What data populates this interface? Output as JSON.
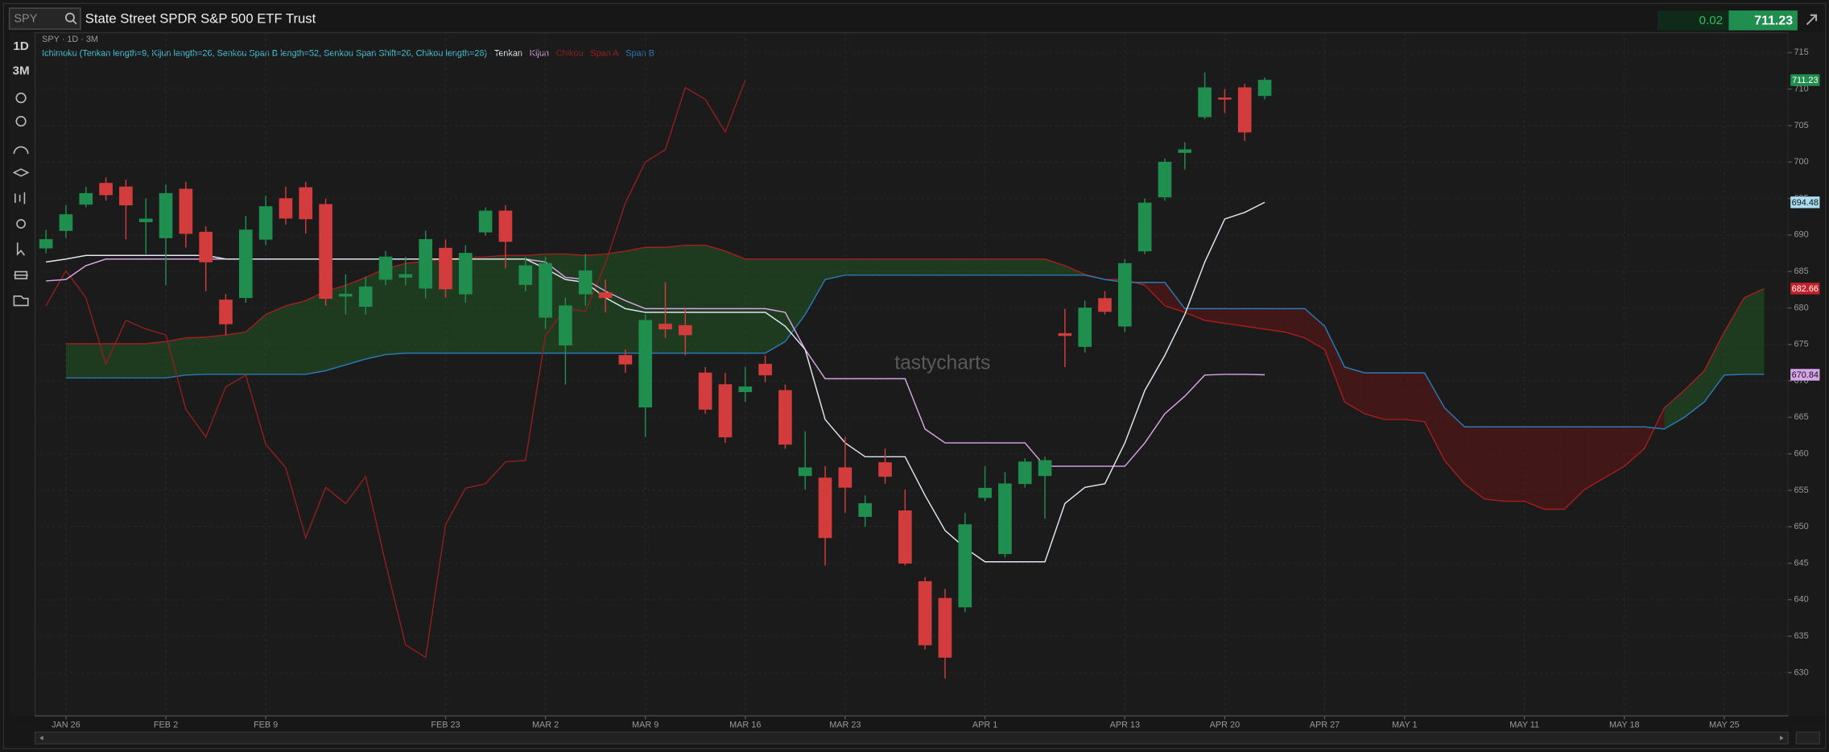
{
  "toolbar": {
    "symbol": "SPY",
    "name": "State Street SPDR S&P 500 ETF Trust",
    "change": "0.02",
    "last": "711.23",
    "timeframes": [
      "1D",
      "3M"
    ]
  },
  "chart_data": {
    "type": "candlestick",
    "title": "SPY · 1D · 3M",
    "study": "Ichimoku (Tenkan length=9, Kijun length=26, Senkou Span B length=52, Senkou Span Shift=26, Chikou length=26)",
    "watermark": "tastycharts",
    "up_color": "#1f8e4e",
    "down_color": "#d23c3c",
    "cloud_up_color": "rgba(40,120,40,0.35)",
    "cloud_down_color": "rgba(120,20,20,0.42)",
    "open": [
      688.2,
      690.6,
      694.2,
      697.1,
      696.6,
      691.8,
      689.6,
      696.3,
      690.4,
      681.1,
      681.4,
      689.4,
      695.0,
      696.5,
      694.2,
      681.6,
      680.2,
      683.9,
      684.2,
      682.7,
      688.2,
      681.9,
      690.4,
      693.3,
      683.2,
      678.7,
      674.9,
      681.9,
      682.1,
      673.5,
      666.4,
      677.8,
      677.6,
      671.1,
      669.5,
      668.5,
      672.3,
      668.7,
      657.0,
      656.7,
      658.1,
      651.4,
      658.8,
      652.2,
      642.5,
      640.2,
      639.0,
      654.0,
      646.3,
      655.9,
      657.0,
      676.5,
      674.7,
      681.3,
      677.5,
      687.8,
      695.2,
      701.3,
      706.2,
      708.8,
      710.2,
      709.1
    ],
    "high": [
      690.7,
      694.1,
      696.6,
      697.9,
      697.6,
      695.0,
      696.9,
      697.3,
      691.2,
      681.9,
      692.6,
      695.4,
      696.6,
      697.3,
      695.0,
      684.6,
      684.3,
      687.8,
      687.0,
      690.6,
      689.4,
      688.6,
      693.8,
      694.1,
      687.0,
      687.0,
      681.4,
      687.4,
      683.9,
      674.3,
      679.1,
      683.5,
      679.9,
      671.9,
      671.1,
      671.9,
      673.5,
      669.5,
      663.1,
      658.3,
      662.3,
      654.3,
      660.7,
      655.1,
      643.1,
      641.5,
      651.9,
      658.3,
      657.5,
      659.4,
      659.6,
      679.9,
      681.0,
      682.3,
      686.7,
      695.0,
      700.5,
      702.7,
      712.3,
      710.0,
      710.7,
      711.6
    ],
    "low": [
      687.5,
      689.6,
      693.8,
      694.7,
      689.4,
      687.4,
      683.1,
      688.3,
      682.3,
      676.3,
      680.7,
      688.6,
      691.4,
      690.2,
      680.3,
      679.1,
      679.1,
      683.1,
      683.1,
      681.3,
      681.4,
      680.7,
      689.9,
      685.4,
      682.3,
      677.1,
      669.5,
      680.3,
      679.4,
      671.1,
      662.3,
      675.9,
      673.5,
      665.5,
      661.5,
      667.1,
      669.8,
      660.7,
      655.1,
      644.7,
      651.9,
      650.0,
      655.9,
      644.7,
      633.2,
      629.2,
      638.3,
      653.5,
      645.8,
      655.4,
      651.1,
      671.9,
      673.9,
      679.1,
      676.7,
      687.4,
      694.7,
      699.0,
      705.9,
      706.7,
      702.9,
      708.6
    ],
    "close": [
      689.4,
      692.8,
      695.7,
      695.5,
      694.1,
      692.2,
      695.7,
      690.2,
      686.3,
      677.8,
      690.7,
      693.9,
      692.3,
      692.2,
      681.3,
      681.9,
      682.9,
      687.0,
      684.6,
      689.4,
      682.6,
      687.5,
      693.3,
      689.1,
      685.8,
      686.1,
      680.3,
      685.1,
      681.4,
      672.3,
      678.3,
      677.1,
      676.3,
      666.1,
      662.3,
      669.2,
      670.8,
      661.3,
      658.1,
      648.5,
      655.4,
      653.2,
      656.9,
      645.0,
      633.8,
      632.1,
      650.3,
      655.3,
      655.9,
      658.9,
      659.1,
      676.2,
      680.0,
      679.5,
      686.1,
      694.4,
      700.0,
      701.7,
      710.2,
      708.6,
      704.1,
      711.23
    ],
    "series": [
      {
        "name": "Tenkan",
        "color": "#dfe8f0",
        "values": [
          686.3,
          686.7,
          687.2,
          687.2,
          687.2,
          687.2,
          687.2,
          687.2,
          687.2,
          686.7,
          686.7,
          686.7,
          686.7,
          686.7,
          686.7,
          686.7,
          686.7,
          686.7,
          686.7,
          686.7,
          686.7,
          686.7,
          686.7,
          686.7,
          686.7,
          685.4,
          683.9,
          683.5,
          681.4,
          679.9,
          679.4,
          679.4,
          679.4,
          679.4,
          679.4,
          679.4,
          679.4,
          677.5,
          674.3,
          664.7,
          661.5,
          659.6,
          659.6,
          659.6,
          654.3,
          649.5,
          647.1,
          645.2,
          645.2,
          645.2,
          645.2,
          653.2,
          655.4,
          655.9,
          661.5,
          668.7,
          673.5,
          679.1,
          686.3,
          692.2,
          693.1,
          694.48,
          null,
          null,
          null,
          null,
          null,
          null,
          null,
          null,
          null,
          null,
          null,
          null,
          null,
          null,
          null,
          null,
          null,
          null,
          null,
          null,
          null,
          null,
          null,
          null,
          null
        ]
      },
      {
        "name": "Kijun",
        "color": "#d8a6e6",
        "values": [
          683.7,
          683.9,
          685.8,
          686.7,
          686.7,
          686.7,
          686.7,
          686.7,
          686.7,
          686.7,
          686.7,
          686.7,
          686.7,
          686.7,
          686.7,
          686.7,
          686.7,
          686.7,
          686.7,
          686.7,
          686.7,
          686.7,
          686.7,
          686.7,
          686.7,
          686.3,
          684.2,
          683.9,
          682.3,
          681.0,
          679.9,
          679.9,
          679.9,
          679.9,
          679.9,
          679.9,
          679.9,
          679.4,
          674.3,
          670.3,
          670.3,
          670.3,
          670.3,
          670.3,
          663.4,
          661.5,
          661.5,
          661.5,
          661.5,
          661.5,
          658.3,
          658.3,
          658.3,
          658.3,
          658.3,
          661.5,
          665.5,
          667.9,
          670.8,
          670.9,
          670.9,
          670.84,
          null,
          null,
          null,
          null,
          null,
          null,
          null,
          null,
          null,
          null,
          null,
          null,
          null,
          null,
          null,
          null,
          null,
          null,
          null,
          null,
          null,
          null,
          null,
          null,
          null
        ]
      },
      {
        "name": "Chikou",
        "color": "#8e1f1f",
        "values": [
          680.3,
          685.1,
          681.4,
          672.3,
          678.3,
          677.1,
          676.3,
          666.1,
          662.3,
          669.2,
          670.8,
          661.3,
          658.1,
          648.5,
          655.4,
          653.2,
          656.9,
          645.0,
          633.8,
          632.1,
          650.3,
          655.3,
          655.9,
          658.9,
          659.1,
          676.2,
          680.0,
          679.5,
          686.1,
          694.4,
          700.0,
          701.7,
          710.2,
          708.6,
          704.1,
          711.23,
          null,
          null,
          null,
          null,
          null,
          null,
          null,
          null,
          null,
          null,
          null,
          null,
          null,
          null,
          null,
          null,
          null,
          null,
          null,
          null,
          null,
          null,
          null,
          null,
          null,
          null,
          null,
          null,
          null,
          null,
          null,
          null,
          null,
          null,
          null,
          null,
          null,
          null,
          null,
          null,
          null,
          null,
          null,
          null,
          null,
          null,
          null,
          null,
          null,
          null,
          null
        ]
      },
      {
        "name": "Span A",
        "color": "#a31e1e",
        "values": [
          null,
          675.1,
          675.1,
          675.1,
          675.1,
          675.1,
          675.4,
          675.9,
          676.0,
          676.3,
          676.7,
          679.1,
          680.3,
          681.0,
          682.3,
          683.1,
          684.2,
          685.4,
          686.1,
          686.4,
          686.7,
          686.9,
          687.0,
          687.2,
          687.2,
          687.4,
          687.4,
          687.2,
          687.4,
          687.8,
          688.3,
          688.3,
          688.6,
          688.6,
          687.8,
          686.7,
          686.7,
          686.7,
          686.7,
          686.7,
          686.7,
          686.7,
          686.7,
          686.7,
          686.7,
          686.7,
          686.7,
          686.7,
          686.7,
          686.7,
          686.7,
          685.8,
          684.6,
          683.9,
          683.9,
          683.1,
          680.3,
          679.4,
          678.3,
          677.9,
          677.5,
          677.1,
          676.7,
          675.9,
          674.3,
          667.1,
          665.5,
          664.7,
          664.7,
          664.4,
          659.1,
          655.9,
          653.8,
          653.5,
          653.5,
          652.4,
          652.4,
          655.1,
          656.7,
          658.3,
          660.7,
          666.3,
          668.7,
          671.4,
          676.7,
          681.4,
          682.66
        ]
      },
      {
        "name": "Span B",
        "color": "#2a7ab8",
        "values": [
          null,
          670.4,
          670.4,
          670.4,
          670.4,
          670.4,
          670.4,
          670.8,
          670.9,
          670.9,
          670.9,
          670.9,
          670.9,
          670.9,
          671.4,
          672.2,
          673.0,
          673.6,
          673.8,
          673.8,
          673.8,
          673.8,
          673.8,
          673.8,
          673.8,
          673.8,
          673.8,
          673.8,
          673.8,
          673.8,
          673.8,
          673.8,
          673.8,
          673.8,
          673.8,
          673.8,
          673.8,
          675.4,
          679.1,
          683.9,
          684.5,
          684.5,
          684.5,
          684.5,
          684.5,
          684.5,
          684.5,
          684.5,
          684.5,
          684.5,
          684.5,
          684.5,
          684.5,
          683.9,
          683.5,
          683.5,
          683.5,
          679.9,
          679.9,
          679.9,
          679.9,
          679.9,
          679.9,
          679.9,
          677.5,
          671.9,
          671.1,
          671.1,
          671.1,
          671.1,
          666.3,
          663.7,
          663.7,
          663.7,
          663.7,
          663.7,
          663.7,
          663.7,
          663.7,
          663.7,
          663.7,
          663.4,
          665.0,
          667.1,
          670.8,
          670.9,
          670.9
        ]
      }
    ],
    "xlim": [
      -0.55,
      87.2
    ],
    "xticks": [
      {
        "value": 1,
        "label": "JAN 26"
      },
      {
        "value": 6,
        "label": "FEB 2"
      },
      {
        "value": 11,
        "label": "FEB 9"
      },
      {
        "value": 20,
        "label": "FEB 23"
      },
      {
        "value": 25,
        "label": "MAR 2"
      },
      {
        "value": 30,
        "label": "MAR 9"
      },
      {
        "value": 35,
        "label": "MAR 16"
      },
      {
        "value": 40,
        "label": "MAR 23"
      },
      {
        "value": 47,
        "label": "APR 1"
      },
      {
        "value": 54,
        "label": "APR 13"
      },
      {
        "value": 59,
        "label": "APR 20"
      },
      {
        "value": 64,
        "label": "APR 27"
      },
      {
        "value": 68,
        "label": "MAY 1"
      },
      {
        "value": 74,
        "label": "MAY 11"
      },
      {
        "value": 79,
        "label": "MAY 18"
      },
      {
        "value": 84,
        "label": "MAY 25"
      }
    ],
    "ylim": [
      624.4,
      717.1
    ],
    "yticks": [
      630,
      635,
      640,
      645,
      650,
      655,
      660,
      665,
      670,
      675,
      680,
      685,
      690,
      695,
      700,
      705,
      710,
      715
    ],
    "grid": true,
    "price_labels": [
      711.23,
      694.48,
      682.66,
      670.84
    ],
    "price_label_colors": [
      "#1f8e4e",
      "#a9dcef",
      "#c3202b",
      "#d7a6ea"
    ]
  }
}
